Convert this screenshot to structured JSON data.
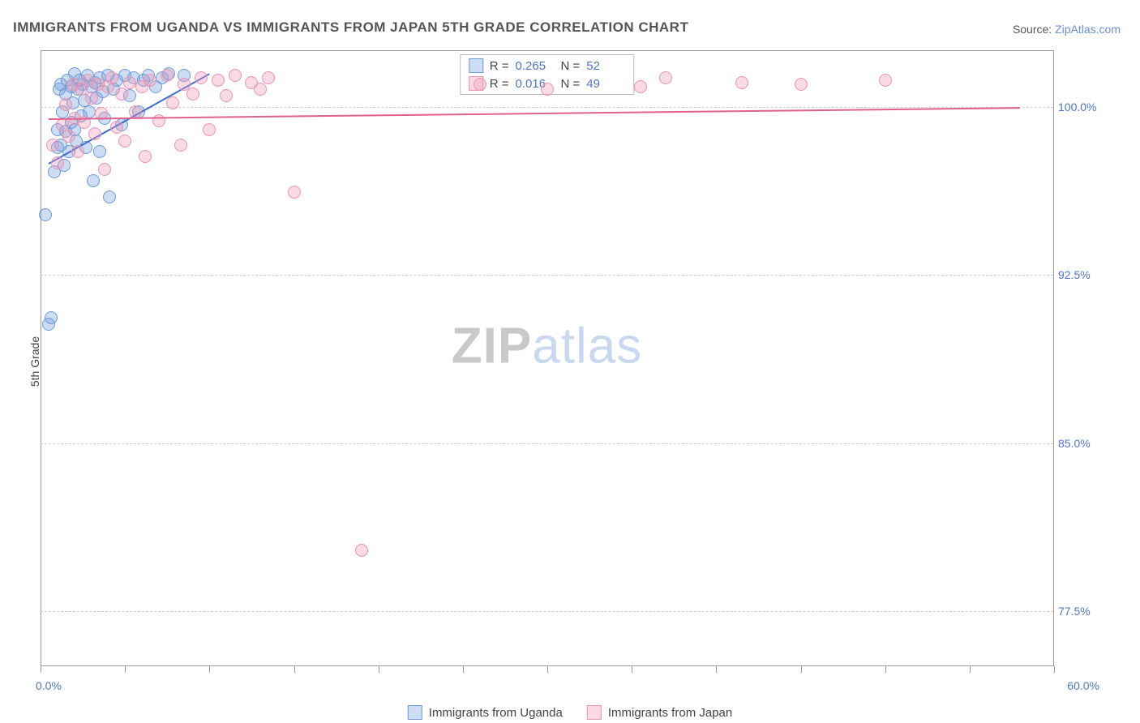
{
  "title": "IMMIGRANTS FROM UGANDA VS IMMIGRANTS FROM JAPAN 5TH GRADE CORRELATION CHART",
  "source_label": "Source:",
  "source_link": "ZipAtlas.com",
  "ylabel": "5th Grade",
  "watermark_bold": "ZIP",
  "watermark_light": "atlas",
  "chart": {
    "type": "scatter",
    "xlim": [
      0,
      60
    ],
    "ylim": [
      75,
      102.5
    ],
    "ytick_values": [
      77.5,
      85.0,
      92.5,
      100.0
    ],
    "ytick_labels": [
      "77.5%",
      "85.0%",
      "92.5%",
      "100.0%"
    ],
    "xtick_values": [
      0,
      5,
      10,
      15,
      20,
      25,
      30,
      35,
      40,
      45,
      50,
      55,
      60
    ],
    "xtick_label_min": "0.0%",
    "xtick_label_max": "60.0%",
    "marker_radius": 8,
    "background_color": "#ffffff",
    "grid_color": "#cccccc",
    "axis_color": "#999999",
    "tick_label_color": "#5077c4",
    "series": [
      {
        "name": "Immigrants from Uganda",
        "fill_color": "rgba(112,157,222,0.35)",
        "stroke_color": "#6f9ad6",
        "trend_color": "#3a6fd0",
        "R": "0.265",
        "N": "52",
        "trend": {
          "x1": 0.5,
          "y1": 97.5,
          "x2": 10,
          "y2": 101.5
        },
        "points": [
          [
            0.3,
            95.2
          ],
          [
            0.5,
            90.3
          ],
          [
            0.6,
            90.6
          ],
          [
            0.8,
            97.1
          ],
          [
            1.0,
            98.2
          ],
          [
            1.0,
            99.0
          ],
          [
            1.1,
            100.8
          ],
          [
            1.2,
            98.3
          ],
          [
            1.2,
            101.0
          ],
          [
            1.3,
            99.8
          ],
          [
            1.4,
            97.4
          ],
          [
            1.5,
            100.6
          ],
          [
            1.5,
            98.9
          ],
          [
            1.6,
            101.2
          ],
          [
            1.7,
            98.0
          ],
          [
            1.8,
            100.9
          ],
          [
            1.8,
            99.3
          ],
          [
            1.9,
            100.2
          ],
          [
            2.0,
            101.5
          ],
          [
            2.0,
            99.0
          ],
          [
            2.1,
            98.5
          ],
          [
            2.2,
            100.8
          ],
          [
            2.3,
            101.2
          ],
          [
            2.4,
            99.6
          ],
          [
            2.5,
            101.0
          ],
          [
            2.6,
            100.3
          ],
          [
            2.7,
            98.2
          ],
          [
            2.8,
            101.4
          ],
          [
            2.9,
            99.8
          ],
          [
            3.0,
            100.9
          ],
          [
            3.1,
            96.7
          ],
          [
            3.2,
            101.1
          ],
          [
            3.3,
            100.4
          ],
          [
            3.5,
            101.3
          ],
          [
            3.5,
            98.0
          ],
          [
            3.7,
            100.7
          ],
          [
            3.8,
            99.5
          ],
          [
            4.0,
            101.4
          ],
          [
            4.1,
            96.0
          ],
          [
            4.3,
            100.8
          ],
          [
            4.5,
            101.2
          ],
          [
            4.8,
            99.2
          ],
          [
            5.0,
            101.4
          ],
          [
            5.3,
            100.5
          ],
          [
            5.5,
            101.3
          ],
          [
            5.8,
            99.8
          ],
          [
            6.1,
            101.2
          ],
          [
            6.4,
            101.4
          ],
          [
            6.8,
            100.9
          ],
          [
            7.2,
            101.3
          ],
          [
            7.6,
            101.5
          ],
          [
            8.5,
            101.4
          ]
        ]
      },
      {
        "name": "Immigrants from Japan",
        "fill_color": "rgba(240,150,180,0.35)",
        "stroke_color": "#e695b3",
        "trend_color": "#e06090",
        "R": "0.016",
        "N": "49",
        "trend": {
          "x1": 0.5,
          "y1": 99.5,
          "x2": 58,
          "y2": 100.0
        },
        "points": [
          [
            0.7,
            98.3
          ],
          [
            1.0,
            97.5
          ],
          [
            1.3,
            99.2
          ],
          [
            1.5,
            100.1
          ],
          [
            1.7,
            98.7
          ],
          [
            1.9,
            101.0
          ],
          [
            2.0,
            99.5
          ],
          [
            2.2,
            98.0
          ],
          [
            2.4,
            100.8
          ],
          [
            2.6,
            99.3
          ],
          [
            2.8,
            101.2
          ],
          [
            3.0,
            100.4
          ],
          [
            3.2,
            98.8
          ],
          [
            3.4,
            101.0
          ],
          [
            3.6,
            99.7
          ],
          [
            3.8,
            97.2
          ],
          [
            4.0,
            100.9
          ],
          [
            4.2,
            101.3
          ],
          [
            4.5,
            99.1
          ],
          [
            4.8,
            100.6
          ],
          [
            5.0,
            98.5
          ],
          [
            5.3,
            101.1
          ],
          [
            5.6,
            99.8
          ],
          [
            6.0,
            100.9
          ],
          [
            6.2,
            97.8
          ],
          [
            6.5,
            101.2
          ],
          [
            7.0,
            99.4
          ],
          [
            7.5,
            101.4
          ],
          [
            7.8,
            100.2
          ],
          [
            8.3,
            98.3
          ],
          [
            8.5,
            101.0
          ],
          [
            9.0,
            100.6
          ],
          [
            9.5,
            101.3
          ],
          [
            10.0,
            99.0
          ],
          [
            10.5,
            101.2
          ],
          [
            11.0,
            100.5
          ],
          [
            11.5,
            101.4
          ],
          [
            12.5,
            101.1
          ],
          [
            13.0,
            100.8
          ],
          [
            13.5,
            101.3
          ],
          [
            15.0,
            96.2
          ],
          [
            19.0,
            80.2
          ],
          [
            26.0,
            101.0
          ],
          [
            30.0,
            100.8
          ],
          [
            37.0,
            101.3
          ],
          [
            41.5,
            101.1
          ],
          [
            50.0,
            101.2
          ],
          [
            35.5,
            100.9
          ],
          [
            45.0,
            101.0
          ]
        ]
      }
    ]
  },
  "stats_labels": {
    "R_prefix": "R =",
    "N_prefix": "N ="
  }
}
